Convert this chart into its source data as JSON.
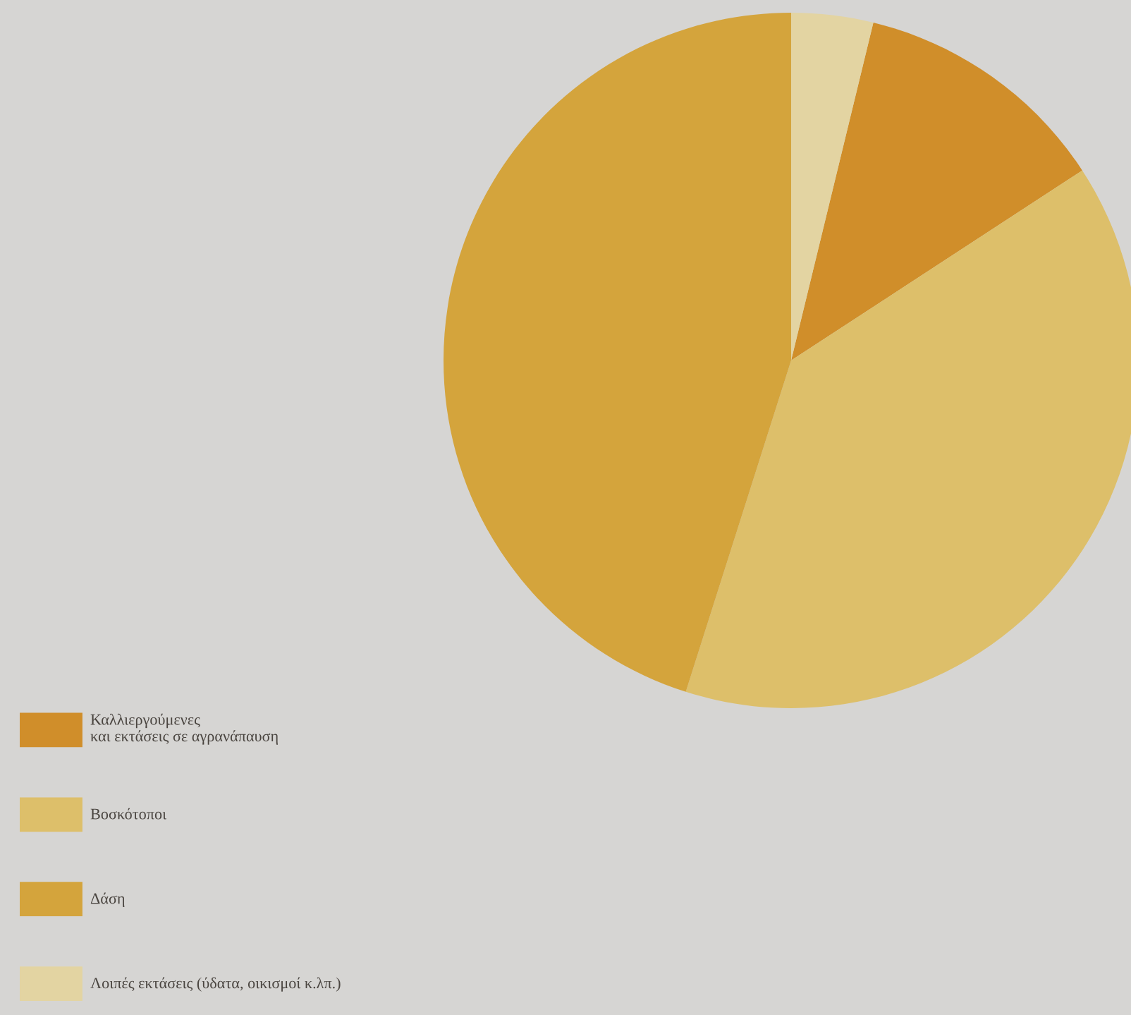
{
  "chart_data": {
    "type": "pie",
    "categories": [
      "Καλλιεργούμενες\nκαι εκτάσεις σε αγρανάπαυση",
      "Βοσκότοποι",
      "Δάση",
      "Λοιπές εκτάσεις (ύδατα, οικισμοί κ.λπ.)"
    ],
    "values": [
      12.0,
      39.1,
      45.1,
      3.8
    ],
    "colors": [
      "#d08e2a",
      "#ddbf6a",
      "#d4a43c",
      "#e3d4a2"
    ],
    "legend": "bottom left"
  }
}
